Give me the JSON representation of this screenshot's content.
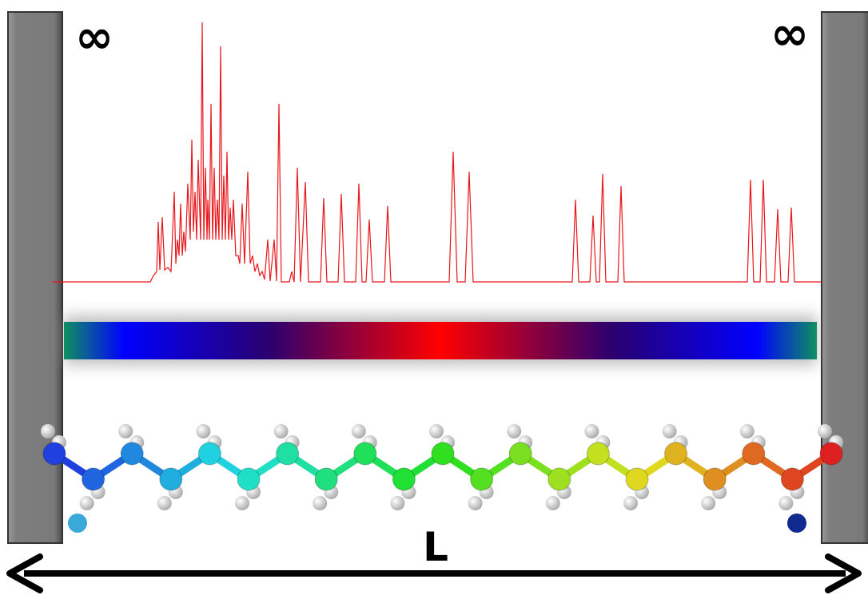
{
  "labels": {
    "left_infinity": "∞",
    "right_infinity": "∞",
    "length": "L"
  }
}
